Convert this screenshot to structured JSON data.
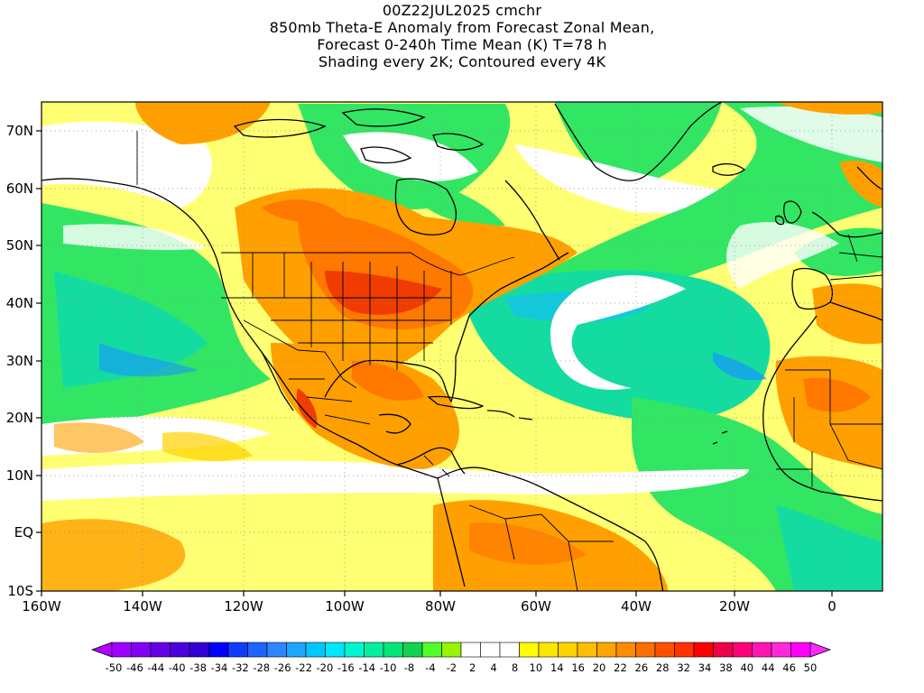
{
  "title": {
    "line1": "00Z22JUL2025 cmchr",
    "line2": "850mb Theta-E Anomaly from Forecast Zonal Mean,",
    "line3": "Forecast 0-240h Time Mean (K) T=78 h",
    "line4": "Shading every 2K; Contoured every 4K"
  },
  "map": {
    "lon_ticks": [
      "160W",
      "140W",
      "120W",
      "100W",
      "80W",
      "60W",
      "40W",
      "20W",
      "0"
    ],
    "lat_ticks": [
      "70N",
      "60N",
      "50N",
      "40N",
      "30N",
      "20N",
      "10N",
      "EQ",
      "10S"
    ],
    "grid": "dotted"
  },
  "colorbar": {
    "labels": [
      "-50",
      "-46",
      "-44",
      "-40",
      "-38",
      "-34",
      "-32",
      "-28",
      "-26",
      "-22",
      "-20",
      "-16",
      "-14",
      "-10",
      "-8",
      "-4",
      "-2",
      "2",
      "4",
      "8",
      "10",
      "14",
      "16",
      "20",
      "22",
      "26",
      "28",
      "32",
      "34",
      "38",
      "40",
      "44",
      "46",
      "50"
    ],
    "colors": [
      "#a000ff",
      "#8200f5",
      "#6400e6",
      "#4b00dc",
      "#3200d2",
      "#0000ff",
      "#0f3cff",
      "#1e64ff",
      "#2d87ff",
      "#1ea5ff",
      "#00c8ff",
      "#00e6ff",
      "#00f5d2",
      "#00f0a0",
      "#00e678",
      "#14d250",
      "#50ff28",
      "#96f500",
      "#ffffff",
      "#ffffff",
      "#ffffff",
      "#ffff00",
      "#ffe600",
      "#ffd200",
      "#ffbe00",
      "#ffa500",
      "#ff8c00",
      "#ff6e00",
      "#ff5000",
      "#ff3200",
      "#ff0000",
      "#f00046",
      "#ff0078",
      "#ff14b4",
      "#ff28dc",
      "#ff00ff"
    ],
    "left_arrow_color": "#b400ff",
    "right_arrow_color": "#ff28ff"
  },
  "palette": {
    "white": "#ffffff",
    "yellow": "#ffff00",
    "orange": "#ffa000",
    "deep_orange": "#ff7800",
    "red": "#f03c00",
    "green": "#32e664",
    "teal": "#14dca0",
    "cyan": "#14c8dc",
    "blue": "#1496ff"
  }
}
